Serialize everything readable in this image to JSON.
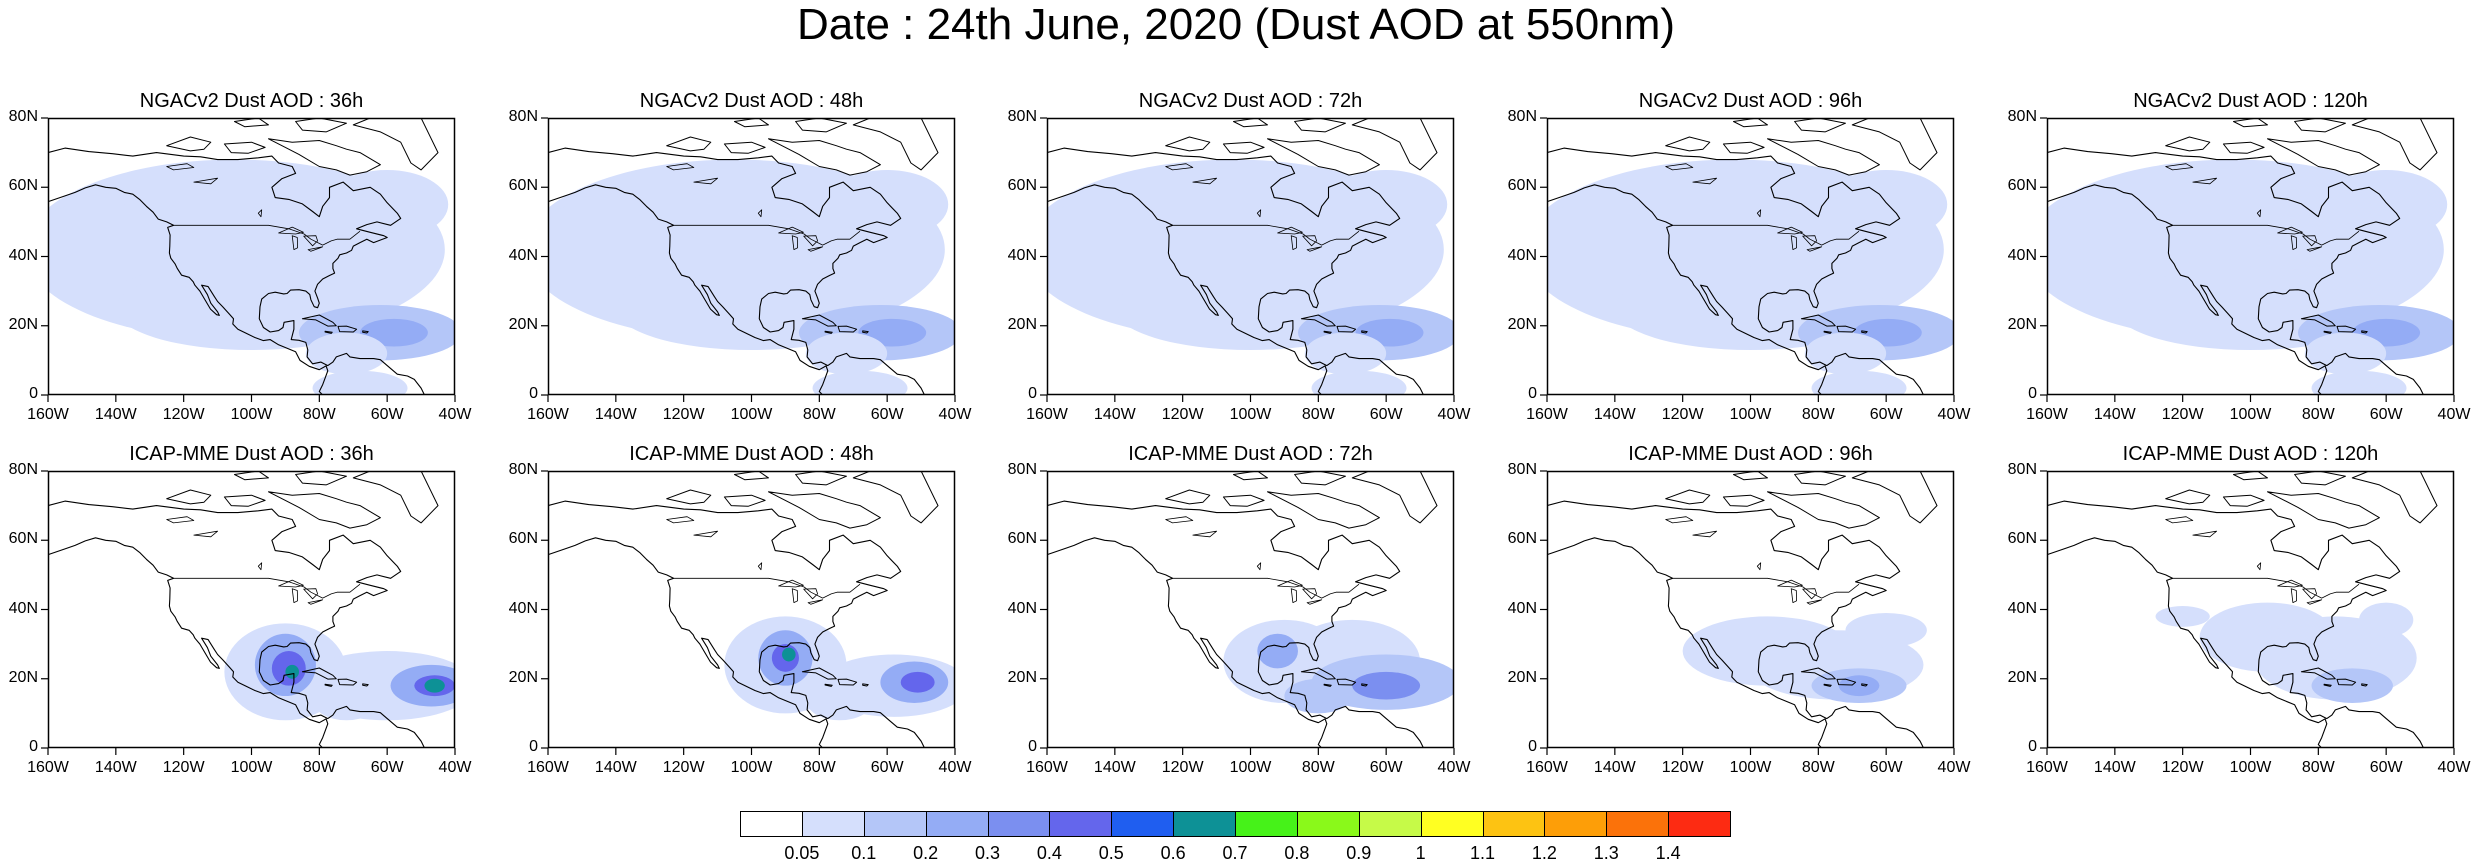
{
  "title": "Date : 24th June, 2020 (Dust AOD at 550nm)",
  "panels": [
    {
      "title": "NGACv2 Dust AOD : 36h",
      "model": "NGACv2",
      "hour": 36
    },
    {
      "title": "NGACv2 Dust AOD : 48h",
      "model": "NGACv2",
      "hour": 48
    },
    {
      "title": "NGACv2 Dust AOD : 72h",
      "model": "NGACv2",
      "hour": 72
    },
    {
      "title": "NGACv2 Dust AOD : 96h",
      "model": "NGACv2",
      "hour": 96
    },
    {
      "title": "NGACv2 Dust AOD : 120h",
      "model": "NGACv2",
      "hour": 120
    },
    {
      "title": "ICAP-MME Dust AOD : 36h",
      "model": "ICAP-MME",
      "hour": 36
    },
    {
      "title": "ICAP-MME Dust AOD : 48h",
      "model": "ICAP-MME",
      "hour": 48
    },
    {
      "title": "ICAP-MME Dust AOD : 72h",
      "model": "ICAP-MME",
      "hour": 72
    },
    {
      "title": "ICAP-MME Dust AOD : 96h",
      "model": "ICAP-MME",
      "hour": 96
    },
    {
      "title": "ICAP-MME Dust AOD : 120h",
      "model": "ICAP-MME",
      "hour": 120
    }
  ],
  "lat_ticks": [
    "80N",
    "60N",
    "40N",
    "20N",
    "0"
  ],
  "lon_ticks": [
    "160W",
    "140W",
    "120W",
    "100W",
    "80W",
    "60W",
    "40W"
  ],
  "colorbar": {
    "colors": [
      "#ffffff",
      "#d5dffc",
      "#b4c6f8",
      "#94acf5",
      "#7b8ff0",
      "#6466ec",
      "#1f5ef0",
      "#0d9196",
      "#46f219",
      "#8af91a",
      "#c6fa48",
      "#ffff22",
      "#fdc312",
      "#fd9e08",
      "#fb720a",
      "#fd2b12"
    ],
    "labels": [
      "0.05",
      "0.1",
      "0.2",
      "0.3",
      "0.4",
      "0.5",
      "0.6",
      "0.7",
      "0.8",
      "0.9",
      "1",
      "1.1",
      "1.2",
      "1.3",
      "1.4"
    ]
  }
}
